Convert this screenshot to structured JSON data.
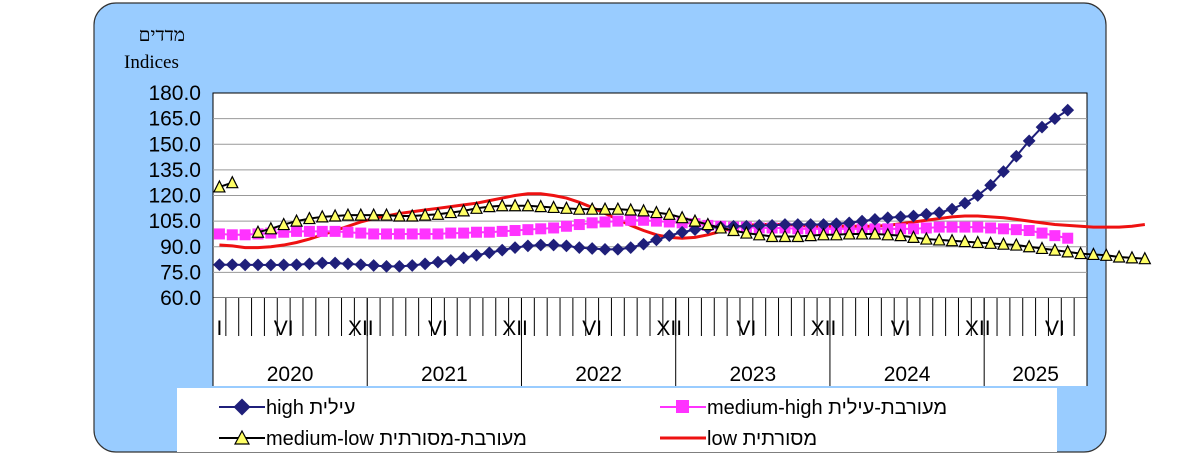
{
  "chart_data": {
    "type": "line",
    "ylabel_he": "מדדים",
    "ylabel_en": "Indices",
    "ylim": [
      60,
      180
    ],
    "yticks": [
      "180.0",
      "165.0",
      "150.0",
      "135.0",
      "120.0",
      "105.0",
      "90.0",
      "75.0",
      "60.0"
    ],
    "month_ticks": [
      "I",
      "VI",
      "XII",
      "VI",
      "XII",
      "VI",
      "XII",
      "VI",
      "XII",
      "VI",
      "XII",
      "VI"
    ],
    "years": [
      "2020",
      "2021",
      "2022",
      "2023",
      "2024",
      "2025"
    ],
    "grid": true,
    "legend_position": "bottom",
    "series": [
      {
        "name": "high עילית",
        "color": "#1f1f7a",
        "marker": "diamond",
        "values": [
          79.5,
          79.5,
          79.4,
          79.4,
          79.3,
          79.4,
          79.5,
          80,
          80.5,
          80.5,
          80,
          79.5,
          79,
          78.5,
          78.5,
          79,
          80,
          81,
          82,
          83.5,
          85,
          86.5,
          88,
          89.5,
          90.5,
          91,
          91,
          90.5,
          89.5,
          89,
          88.5,
          88.5,
          89.5,
          91.5,
          94,
          96.5,
          98.5,
          100,
          101,
          101.5,
          102,
          102,
          102.5,
          102.5,
          103,
          103,
          103,
          103,
          103.5,
          104,
          105,
          106,
          107,
          107.5,
          108,
          109,
          110,
          112,
          115.5,
          120,
          126,
          134,
          143,
          152,
          160,
          165,
          170
        ]
      },
      {
        "name": "medium-high מעורבת-עילית",
        "color": "#ff33ff",
        "marker": "square",
        "values": [
          97.5,
          97,
          97,
          97.5,
          98,
          98.5,
          99,
          99,
          99,
          99,
          98.5,
          98,
          97.5,
          97.5,
          97.5,
          97.5,
          97.5,
          97.5,
          98,
          98,
          98.5,
          98.5,
          99,
          99.5,
          100,
          100.5,
          101,
          102,
          103,
          104,
          104.5,
          105,
          105.5,
          105.5,
          105,
          104.5,
          104,
          103.5,
          102.5,
          102,
          101.5,
          101.5,
          101,
          101,
          101,
          100.5,
          100.5,
          100.5,
          100.5,
          100.5,
          100.5,
          100.5,
          100.5,
          100.5,
          100.5,
          101,
          101.5,
          101.5,
          101.5,
          101.5,
          101,
          100.5,
          100,
          99.5,
          98,
          96.5,
          95
        ]
      },
      {
        "name": "medium-low מעורבת-מסורתית",
        "color": "#000000",
        "fill": "#ffff66",
        "marker": "triangle",
        "values": [
          125,
          127.5,
          null,
          98.5,
          100.5,
          103,
          105,
          106.5,
          107.5,
          108,
          108.5,
          108.5,
          108.5,
          108.5,
          108,
          108,
          108.5,
          109,
          110,
          111,
          112.5,
          113.5,
          114,
          114,
          114,
          113.5,
          113,
          112.5,
          112,
          112,
          112,
          112,
          111.5,
          111,
          110,
          109,
          107,
          105,
          103,
          101,
          99.5,
          98,
          97,
          96,
          96,
          96,
          96.5,
          97,
          97,
          97.5,
          97.5,
          97.5,
          97,
          96.5,
          95.5,
          94.5,
          94,
          93.5,
          93,
          92.5,
          92,
          91.5,
          91,
          90,
          89,
          88,
          87,
          86,
          85.5,
          85,
          84,
          83.5,
          83
        ]
      },
      {
        "name": "low מסורתית",
        "color": "#ee1111",
        "marker": "none",
        "values": [
          91,
          90.5,
          89.5,
          89.5,
          90,
          91,
          92.5,
          94.5,
          97,
          99.5,
          102,
          104.5,
          106.5,
          108,
          109.5,
          110.5,
          111.5,
          112.5,
          113.5,
          114.5,
          115.5,
          117,
          118.5,
          120,
          121,
          121,
          120,
          118.5,
          116,
          113,
          109.5,
          106,
          102.5,
          99.5,
          97,
          95.5,
          95,
          95.5,
          97,
          99,
          101,
          102.5,
          103,
          103,
          103,
          102.5,
          102,
          102,
          102,
          102,
          102,
          102,
          102.5,
          103.5,
          104.5,
          105.5,
          106.5,
          107.5,
          108,
          108,
          107.5,
          107,
          106,
          105,
          104,
          103,
          102.5,
          102,
          101.5,
          101.5,
          101.5,
          102,
          103
        ]
      }
    ]
  },
  "legend": {
    "high": "high עילית",
    "medium_high": "medium-high מעורבת-עילית",
    "medium_low": "medium-low מעורבת-מסורתית",
    "low": "low  מסורתית"
  },
  "colors": {
    "frame_bg": "#99ccff",
    "plot_bg": "#ffffff",
    "legend_bg": "#ffffff"
  }
}
